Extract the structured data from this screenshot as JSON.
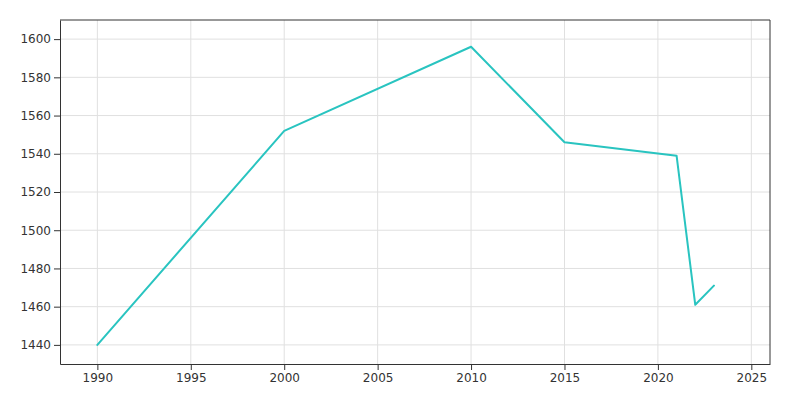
{
  "chart_data": {
    "type": "line",
    "x": [
      1990,
      2000,
      2010,
      2015,
      2021,
      2022,
      2023
    ],
    "values": [
      1440,
      1552,
      1596,
      1546,
      1539,
      1461,
      1471
    ],
    "color": "#29C4C0",
    "xlim": [
      1988,
      2026
    ],
    "ylim": [
      1430,
      1610
    ],
    "xticks": [
      1990,
      1995,
      2000,
      2005,
      2010,
      2015,
      2020,
      2025
    ],
    "yticks": [
      1440,
      1460,
      1480,
      1500,
      1520,
      1540,
      1560,
      1580,
      1600
    ],
    "grid": true
  }
}
